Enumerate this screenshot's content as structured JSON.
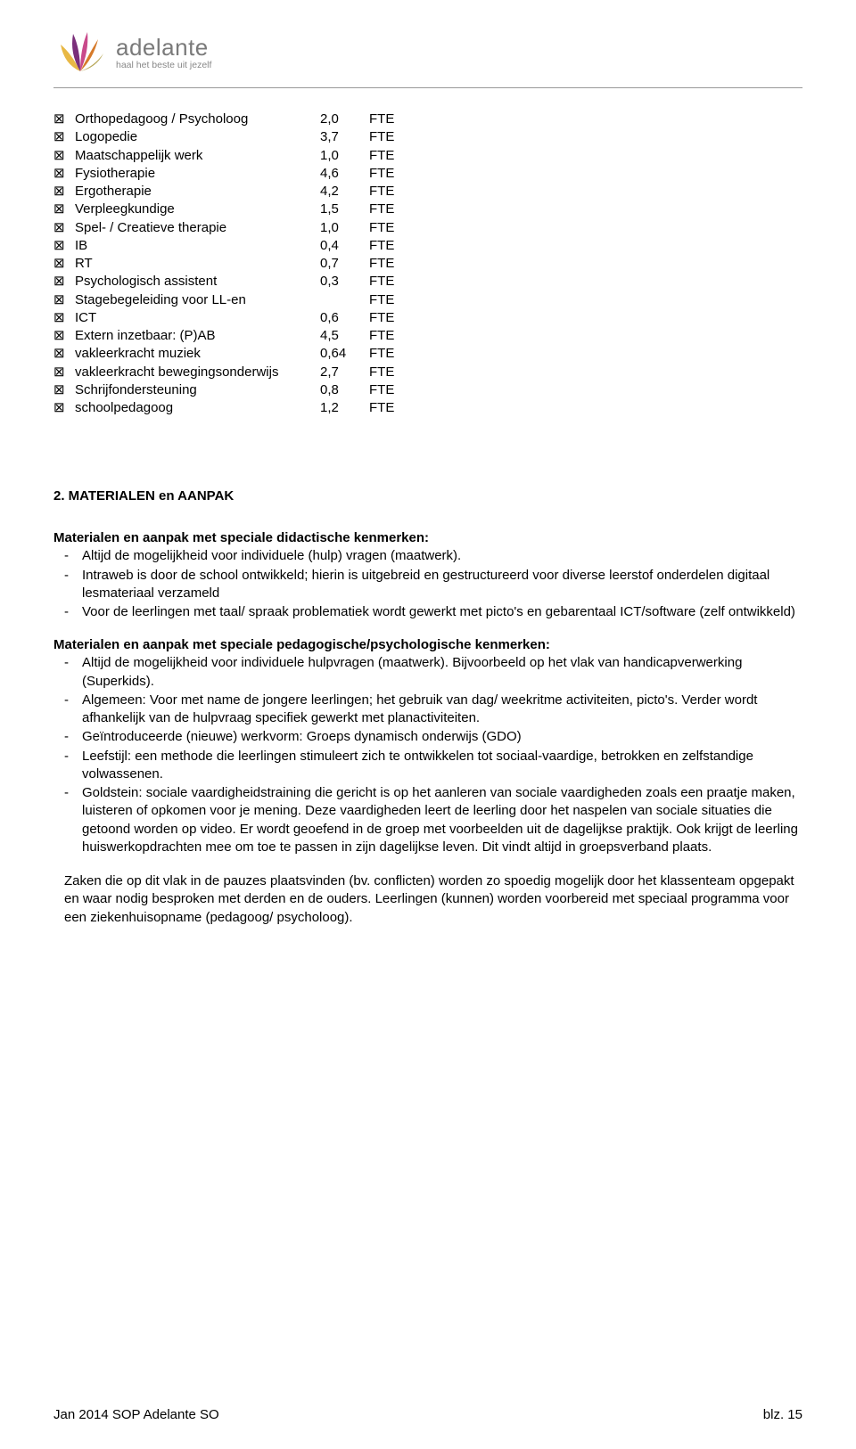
{
  "logo": {
    "name": "adelante",
    "tagline": "haal het beste uit jezelf",
    "colors": {
      "text": "#7a7a7a",
      "leaf1": "#e8b845",
      "leaf2": "#7a2f7a",
      "leaf3": "#c94a8b",
      "leaf4": "#d67a2a",
      "leaf5": "#b8a85a"
    }
  },
  "fte": {
    "unit": "FTE",
    "rows": [
      {
        "label": "Orthopedagoog / Psycholoog",
        "value": "2,0"
      },
      {
        "label": "Logopedie",
        "value": "3,7"
      },
      {
        "label": "Maatschappelijk werk",
        "value": "1,0"
      },
      {
        "label": "Fysiotherapie",
        "value": "4,6"
      },
      {
        "label": "Ergotherapie",
        "value": "4,2"
      },
      {
        "label": "Verpleegkundige",
        "value": "1,5"
      },
      {
        "label": "Spel- / Creatieve therapie",
        "value": "1,0"
      },
      {
        "label": "IB",
        "value": "0,4"
      },
      {
        "label": "RT",
        "value": "0,7"
      },
      {
        "label": "Psychologisch assistent",
        "value": "0,3"
      },
      {
        "label": "Stagebegeleiding voor LL-en",
        "value": ""
      },
      {
        "label": "ICT",
        "value": "0,6"
      },
      {
        "label": "Extern inzetbaar: (P)AB",
        "value": "4,5"
      },
      {
        "label": "vakleerkracht muziek",
        "value": "0,64"
      },
      {
        "label": "vakleerkracht bewegingsonderwijs",
        "value": "2,7"
      },
      {
        "label": "Schrijfondersteuning",
        "value": "0,8"
      },
      {
        "label": "schoolpedagoog",
        "value": "1,2"
      }
    ]
  },
  "section2": {
    "heading": "2. MATERIALEN en AANPAK",
    "sub1": "Materialen en aanpak met speciale didactische kenmerken:",
    "list1": [
      "Altijd de mogelijkheid voor individuele (hulp) vragen (maatwerk).",
      "Intraweb is door de school ontwikkeld; hierin is uitgebreid en gestructureerd voor diverse leerstof onderdelen digitaal lesmateriaal verzameld",
      "Voor de leerlingen met taal/ spraak problematiek wordt gewerkt met picto's en gebarentaal ICT/software (zelf ontwikkeld)"
    ],
    "sub2": "Materialen en aanpak met speciale pedagogische/psychologische kenmerken:",
    "list2": [
      "Altijd de mogelijkheid voor individuele hulpvragen (maatwerk). Bijvoorbeeld op het vlak van handicapverwerking (Superkids).",
      "Algemeen: Voor met name de jongere leerlingen; het gebruik van dag/ weekritme activiteiten, picto's. Verder wordt afhankelijk van de hulpvraag specifiek gewerkt met planactiviteiten.",
      "Geïntroduceerde (nieuwe) werkvorm: Groeps dynamisch onderwijs (GDO)",
      "Leefstijl: een methode die leerlingen stimuleert zich te ontwikkelen tot sociaal-vaardige, betrokken en zelfstandige volwassenen.",
      "Goldstein: sociale vaardigheidstraining die gericht is op het aanleren van sociale vaardigheden zoals een praatje maken, luisteren of opkomen voor je mening. Deze vaardigheden leert de leerling door het naspelen van sociale situaties die getoond worden op video. Er wordt geoefend in de groep met voorbeelden uit de dagelijkse praktijk. Ook krijgt de leerling huiswerkopdrachten mee om toe te passen in zijn dagelijkse leven. Dit vindt altijd in groepsverband plaats."
    ],
    "para1": "Zaken die op dit vlak in de pauzes plaatsvinden (bv. conflicten) worden zo spoedig mogelijk door het klassenteam opgepakt en waar nodig besproken met derden en de ouders. Leerlingen (kunnen) worden voorbereid met speciaal programma voor een ziekenhuisopname (pedagoog/ psycholoog)."
  },
  "footer": {
    "left": "Jan 2014 SOP Adelante SO",
    "right": "blz. 15"
  }
}
